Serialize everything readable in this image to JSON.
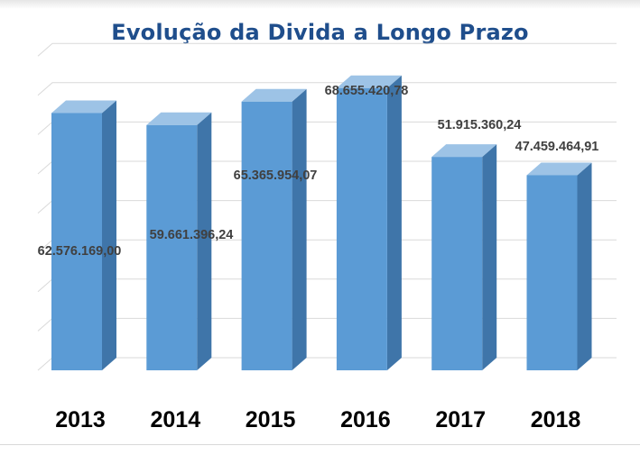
{
  "title": "Evolução da Divida a Longo Prazo",
  "chart_data": {
    "type": "bar",
    "title": "Evolução da Divida a Longo Prazo",
    "categories": [
      "2013",
      "2014",
      "2015",
      "2016",
      "2017",
      "2018"
    ],
    "values": [
      62576169.0,
      59661396.24,
      65365954.07,
      68655420.78,
      51915360.24,
      47459464.91
    ],
    "data_labels": [
      "62.576.169,00",
      "59.661.396,24",
      "65.365.954,07",
      "68.655.420,78",
      "51.915.360,24",
      "47.459.464,91"
    ],
    "xlabel": "",
    "ylabel": "",
    "ylim": [
      0,
      80000000
    ],
    "grid": true,
    "legend": "none",
    "colors": {
      "bar_front": "#5b9bd5",
      "bar_side": "#3f75a9",
      "bar_top": "#9dc3e6",
      "title": "#1f4e8c"
    }
  }
}
